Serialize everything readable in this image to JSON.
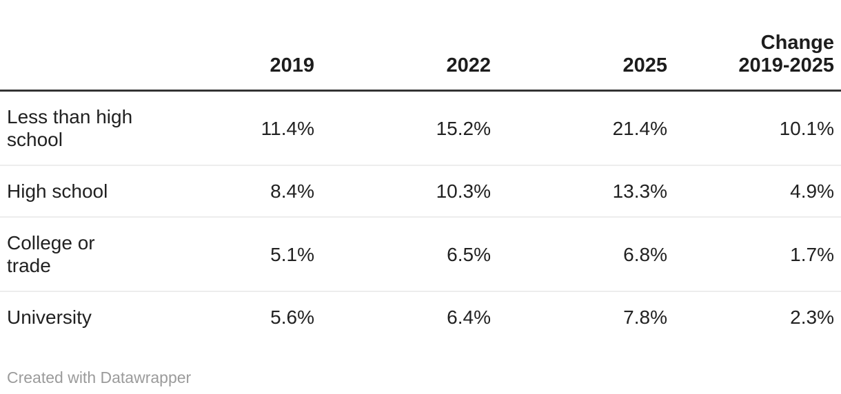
{
  "table": {
    "columns": [
      {
        "label": ""
      },
      {
        "label": "2019"
      },
      {
        "label": "2022"
      },
      {
        "label": "2025"
      },
      {
        "label": "Change\n2019-2025"
      }
    ],
    "rows": [
      {
        "label": "Less than high\nschool",
        "values": [
          "11.4%",
          "15.2%",
          "21.4%",
          "10.1%"
        ]
      },
      {
        "label": "High school",
        "values": [
          "8.4%",
          "10.3%",
          "13.3%",
          "4.9%"
        ]
      },
      {
        "label": "College or\ntrade",
        "values": [
          "5.1%",
          "6.5%",
          "6.8%",
          "1.7%"
        ]
      },
      {
        "label": "University",
        "values": [
          "5.6%",
          "6.4%",
          "7.8%",
          "2.3%"
        ]
      }
    ]
  },
  "footer": {
    "credit": "Created with Datawrapper"
  },
  "colors": {
    "text": "#212121",
    "header_text": "#1d1d1d",
    "header_rule": "#333333",
    "row_separator": "#ededed",
    "footer_text": "#9b9b9b",
    "background": "#ffffff"
  },
  "chart_data": {
    "type": "table",
    "title": "",
    "unit": "%",
    "categories": [
      "Less than high school",
      "High school",
      "College or trade",
      "University"
    ],
    "series": [
      {
        "name": "2019",
        "values": [
          11.4,
          8.4,
          5.1,
          5.6
        ]
      },
      {
        "name": "2022",
        "values": [
          15.2,
          10.3,
          6.5,
          6.4
        ]
      },
      {
        "name": "2025",
        "values": [
          21.4,
          13.3,
          6.8,
          7.8
        ]
      },
      {
        "name": "Change 2019-2025",
        "values": [
          10.1,
          4.9,
          1.7,
          2.3
        ]
      }
    ]
  }
}
